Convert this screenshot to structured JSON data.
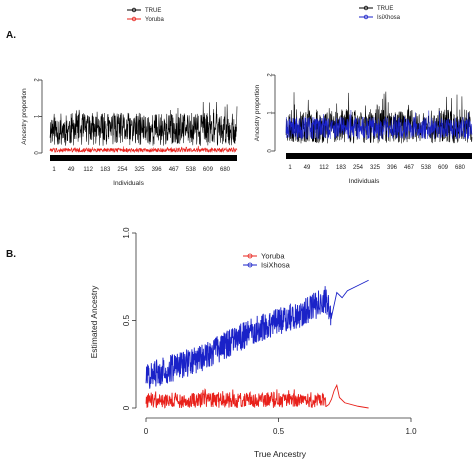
{
  "panel_labels": {
    "a": "A.",
    "b": "B."
  },
  "colors": {
    "true": "#000000",
    "yoruba": "#e8201a",
    "isixhosa": "#1a22c8",
    "axis": "#333333"
  },
  "chart_data": [
    {
      "type": "line",
      "panel": "A-left",
      "xlabel": "Individuals",
      "ylabel": "Ancestry proportion",
      "x_ticks": [
        "1",
        "49",
        "112",
        "183",
        "254",
        "325",
        "396",
        "467",
        "538",
        "609",
        "680"
      ],
      "y_ticks": [
        "0",
        "1",
        "2"
      ],
      "ylim": [
        0,
        2
      ],
      "n_points": 720,
      "legend": [
        "TRUE",
        "Yoruba"
      ],
      "legend_position": "top",
      "series": [
        {
          "name": "TRUE",
          "color": "#000000",
          "mean": 0.65,
          "amplitude": 0.45,
          "max": 1.4,
          "min": 0.15
        },
        {
          "name": "Yoruba",
          "color": "#e8201a",
          "mean": 0.08,
          "amplitude": 0.06,
          "max": 0.2,
          "min": 0.0
        }
      ],
      "index_bar": true
    },
    {
      "type": "line",
      "panel": "A-right",
      "xlabel": "Individuals",
      "ylabel": "Ancestry proportion",
      "x_ticks": [
        "1",
        "49",
        "112",
        "183",
        "254",
        "325",
        "396",
        "467",
        "538",
        "609",
        "680"
      ],
      "y_ticks": [
        "0",
        "1",
        "2"
      ],
      "ylim": [
        0,
        2
      ],
      "n_points": 720,
      "legend": [
        "TRUE",
        "IsiXhosa"
      ],
      "legend_position": "top",
      "series": [
        {
          "name": "TRUE",
          "color": "#000000",
          "mean": 0.65,
          "amplitude": 0.45,
          "max": 1.6,
          "min": 0.1
        },
        {
          "name": "IsiXhosa",
          "color": "#1a22c8",
          "mean": 0.6,
          "amplitude": 0.3,
          "max": 1.1,
          "min": 0.15
        }
      ],
      "index_bar": true
    },
    {
      "type": "line",
      "panel": "B",
      "xlabel": "True Ancestry",
      "ylabel": "Estimated Ancestry",
      "xlim": [
        0,
        1
      ],
      "ylim": [
        0,
        1
      ],
      "x_ticks": [
        "0",
        "0.5",
        "1.0"
      ],
      "y_ticks": [
        "0",
        "0.5",
        "1.0"
      ],
      "legend": [
        "Yoruba",
        "IsiXhosa"
      ],
      "legend_position": "top",
      "series": [
        {
          "name": "Yoruba",
          "color": "#e8201a",
          "x_range": [
            0.0,
            0.84
          ],
          "points": [
            [
              0.0,
              0.0
            ],
            [
              0.1,
              0.05
            ],
            [
              0.3,
              0.03
            ],
            [
              0.5,
              0.04
            ],
            [
              0.65,
              0.03
            ],
            [
              0.72,
              0.13
            ],
            [
              0.75,
              0.03
            ],
            [
              0.84,
              0.0
            ]
          ]
        },
        {
          "name": "IsiXhosa",
          "color": "#1a22c8",
          "x_range": [
            0.0,
            0.84
          ],
          "points": [
            [
              0.0,
              0.18
            ],
            [
              0.2,
              0.28
            ],
            [
              0.4,
              0.44
            ],
            [
              0.6,
              0.55
            ],
            [
              0.68,
              0.62
            ],
            [
              0.7,
              0.52
            ],
            [
              0.72,
              0.66
            ],
            [
              0.84,
              0.73
            ]
          ]
        }
      ]
    }
  ]
}
